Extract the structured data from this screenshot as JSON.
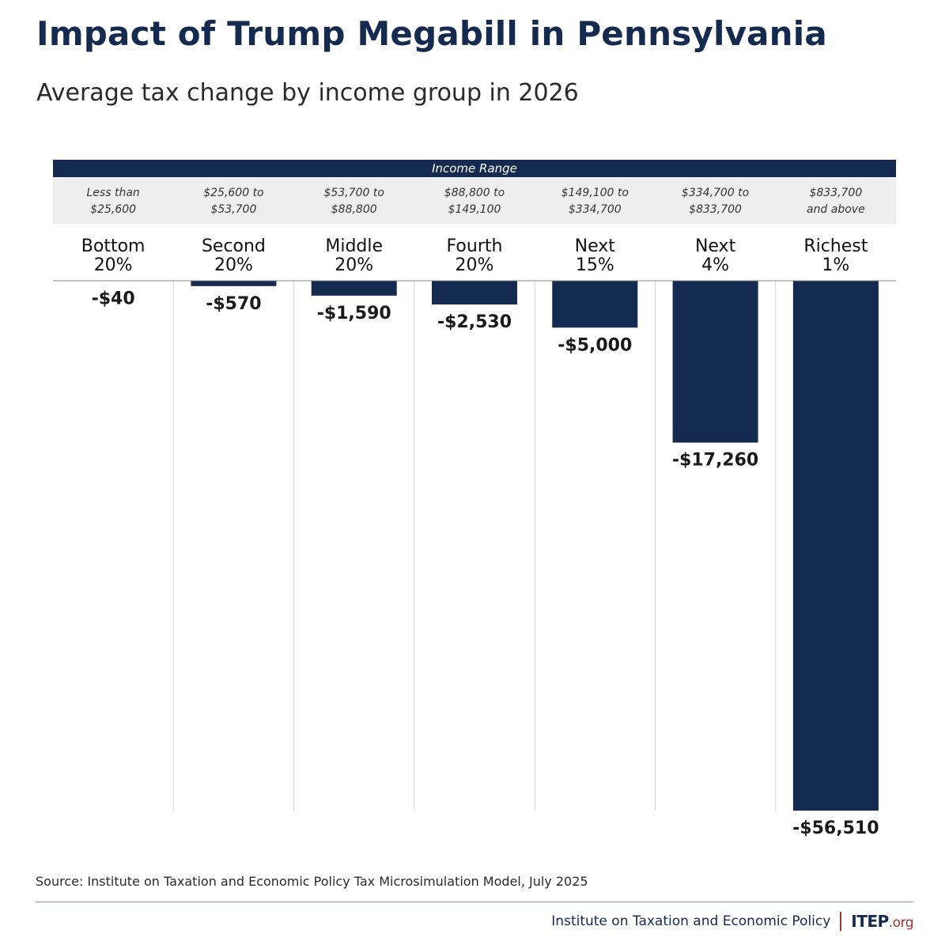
{
  "title": "Impact of Trump Megabill in Pennsylvania",
  "subtitle": "Average tax change by income group in 2026",
  "income_range_header": "Income Range",
  "source": "Source: Institute on Taxation and Economic Policy Tax Microsimulation Model, July 2025",
  "footer": {
    "org_name": "Institute on Taxation and Economic Policy",
    "logo_main": "ITEP",
    "logo_tld": ".org"
  },
  "colors": {
    "bar": "#142a4f",
    "header_band": "#142a4f",
    "range_band": "#eeeeee",
    "brand_red": "#a5342c"
  },
  "chart_data": {
    "type": "bar",
    "title": "Impact of Trump Megabill in Pennsylvania",
    "subtitle": "Average tax change by income group in 2026",
    "categories": [
      "Bottom 20%",
      "Second 20%",
      "Middle 20%",
      "Fourth 20%",
      "Next 15%",
      "Next 4%",
      "Richest 1%"
    ],
    "category_lines": [
      [
        "Bottom",
        "20%"
      ],
      [
        "Second",
        "20%"
      ],
      [
        "Middle",
        "20%"
      ],
      [
        "Fourth",
        "20%"
      ],
      [
        "Next",
        "15%"
      ],
      [
        "Next",
        "4%"
      ],
      [
        "Richest",
        "1%"
      ]
    ],
    "income_ranges": [
      [
        "Less than",
        "$25,600"
      ],
      [
        "$25,600 to",
        "$53,700"
      ],
      [
        "$53,700 to",
        "$88,800"
      ],
      [
        "$88,800 to",
        "$149,100"
      ],
      [
        "$149,100 to",
        "$334,700"
      ],
      [
        "$334,700 to",
        "$833,700"
      ],
      [
        "$833,700",
        "and above"
      ]
    ],
    "values": [
      -40,
      -570,
      -1590,
      -2530,
      -5000,
      -17260,
      -56510
    ],
    "value_labels": [
      "-$40",
      "-$570",
      "-$1,590",
      "-$2,530",
      "-$5,000",
      "-$17,260",
      "-$56,510"
    ],
    "ylim": [
      -56510,
      0
    ],
    "grid": false,
    "legend": "none"
  }
}
